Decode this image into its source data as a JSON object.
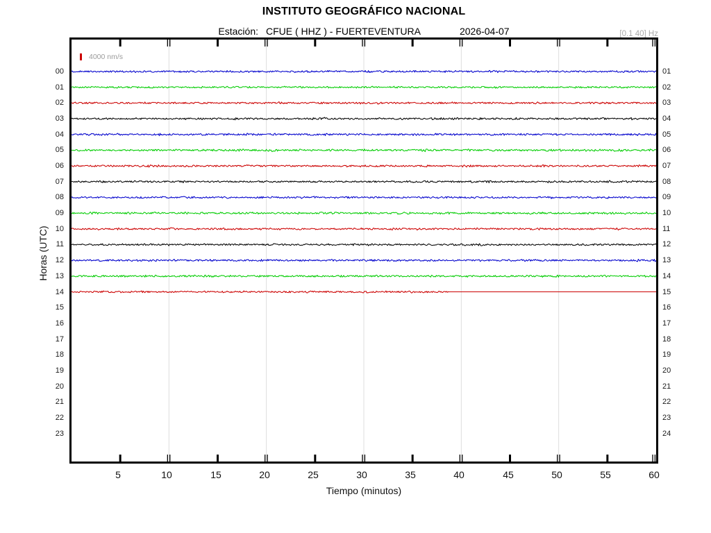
{
  "header": {
    "title": "INSTITUTO GEOGRÁFICO NACIONAL",
    "station_label": "Estación:",
    "station_value": "CFUE ( HHZ ) - FUERTEVENTURA",
    "date": "2026-04-07",
    "filter_band": "[0.1 40] Hz"
  },
  "legend": {
    "scale_label": "4000 nm/s",
    "scale_value_nm_s": 4000,
    "tick_color": "#cc0000"
  },
  "axes": {
    "y_label": "Horas (UTC)",
    "x_label": "Tiempo (minutos)",
    "x_ticks": [
      5,
      10,
      15,
      20,
      25,
      30,
      35,
      40,
      45,
      50,
      55,
      60
    ],
    "left_hour_labels": [
      "00",
      "01",
      "02",
      "03",
      "04",
      "05",
      "06",
      "07",
      "08",
      "09",
      "10",
      "11",
      "12",
      "13",
      "14",
      "15",
      "16",
      "17",
      "18",
      "19",
      "20",
      "21",
      "22",
      "23"
    ],
    "right_hour_labels": [
      "01",
      "02",
      "03",
      "04",
      "05",
      "06",
      "07",
      "08",
      "09",
      "10",
      "11",
      "12",
      "13",
      "14",
      "15",
      "16",
      "17",
      "18",
      "19",
      "20",
      "21",
      "22",
      "23",
      "24"
    ]
  },
  "chart_data": {
    "type": "line",
    "title": "Helicorder drum plot, station CFUE (HHZ) Fuerteventura, 2026-04-07",
    "x_range_minutes": [
      0,
      60
    ],
    "rows_total": 24,
    "grid_minutes": [
      10,
      20,
      30,
      40,
      50
    ],
    "single_tick_minutes": [
      5,
      15,
      25,
      35,
      45,
      55
    ],
    "double_tick_minutes": [
      10,
      20,
      30,
      40,
      50,
      60
    ],
    "trace_color_cycle": [
      "#0000cc",
      "#00cc00",
      "#cc0000",
      "#000000"
    ],
    "traces": [
      {
        "row": 0,
        "hour_utc": "00",
        "color": "#0000cc",
        "start_min": 0,
        "end_min": 60
      },
      {
        "row": 1,
        "hour_utc": "01",
        "color": "#00cc00",
        "start_min": 0,
        "end_min": 60
      },
      {
        "row": 2,
        "hour_utc": "02",
        "color": "#cc0000",
        "start_min": 0,
        "end_min": 60
      },
      {
        "row": 3,
        "hour_utc": "03",
        "color": "#000000",
        "start_min": 0,
        "end_min": 60
      },
      {
        "row": 4,
        "hour_utc": "04",
        "color": "#0000cc",
        "start_min": 0,
        "end_min": 60
      },
      {
        "row": 5,
        "hour_utc": "05",
        "color": "#00cc00",
        "start_min": 0,
        "end_min": 60
      },
      {
        "row": 6,
        "hour_utc": "06",
        "color": "#cc0000",
        "start_min": 0,
        "end_min": 60
      },
      {
        "row": 7,
        "hour_utc": "07",
        "color": "#000000",
        "start_min": 0,
        "end_min": 60
      },
      {
        "row": 8,
        "hour_utc": "08",
        "color": "#0000cc",
        "start_min": 0,
        "end_min": 60
      },
      {
        "row": 9,
        "hour_utc": "09",
        "color": "#00cc00",
        "start_min": 0,
        "end_min": 60
      },
      {
        "row": 10,
        "hour_utc": "10",
        "color": "#cc0000",
        "start_min": 0,
        "end_min": 60
      },
      {
        "row": 11,
        "hour_utc": "11",
        "color": "#000000",
        "start_min": 0,
        "end_min": 60
      },
      {
        "row": 12,
        "hour_utc": "12",
        "color": "#0000cc",
        "start_min": 0,
        "end_min": 60
      },
      {
        "row": 13,
        "hour_utc": "13",
        "color": "#00cc00",
        "start_min": 0,
        "end_min": 60
      },
      {
        "row": 14,
        "hour_utc": "14",
        "color": "#cc0000",
        "start_min": 0,
        "end_min": 38.7,
        "flat_to_min": 60
      }
    ],
    "empty_hours": [
      "15",
      "16",
      "17",
      "18",
      "19",
      "20",
      "21",
      "22",
      "23"
    ],
    "amplitude_scale_nm_s": 4000,
    "frequency_band_hz": [
      0.1,
      40
    ]
  },
  "colors": {
    "frame": "#000000",
    "grid": "#dddddd",
    "gray_text": "#a9a9a9",
    "hour_label": "#1a1a1a"
  }
}
